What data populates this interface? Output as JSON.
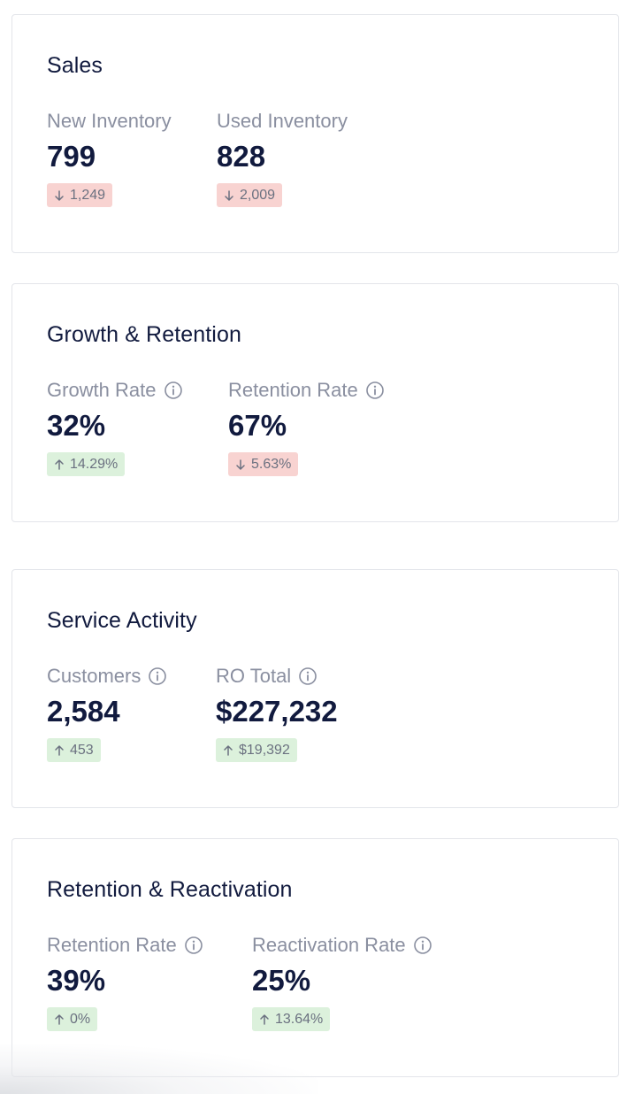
{
  "cards": [
    {
      "title": "Sales",
      "metrics": [
        {
          "label": "New Inventory",
          "value": "799",
          "change": "1,249",
          "direction": "down",
          "info": false
        },
        {
          "label": "Used Inventory",
          "value": "828",
          "change": "2,009",
          "direction": "down",
          "info": false
        }
      ]
    },
    {
      "title": "Growth & Retention",
      "metrics": [
        {
          "label": "Growth Rate",
          "value": "32%",
          "change": "14.29%",
          "direction": "up",
          "info": true
        },
        {
          "label": "Retention Rate",
          "value": "67%",
          "change": "5.63%",
          "direction": "down",
          "info": true
        }
      ]
    },
    {
      "title": "Service Activity",
      "metrics": [
        {
          "label": "Customers",
          "value": "2,584",
          "change": "453",
          "direction": "up",
          "info": true
        },
        {
          "label": "RO Total",
          "value": "$227,232",
          "change": "$19,392",
          "direction": "up",
          "info": true
        }
      ]
    },
    {
      "title": "Retention & Reactivation",
      "metrics": [
        {
          "label": "Retention Rate",
          "value": "39%",
          "change": "0%",
          "direction": "up",
          "info": true
        },
        {
          "label": "Reactivation Rate",
          "value": "25%",
          "change": "13.64%",
          "direction": "up",
          "info": true
        }
      ]
    }
  ],
  "colors": {
    "title": "#111a3e",
    "label": "#8a8fa0",
    "badge_down": "#f8d3d1",
    "badge_up": "#dcf1dc"
  },
  "icons": {
    "info": "info-circle-icon",
    "down": "arrow-down-icon",
    "up": "arrow-up-icon"
  }
}
